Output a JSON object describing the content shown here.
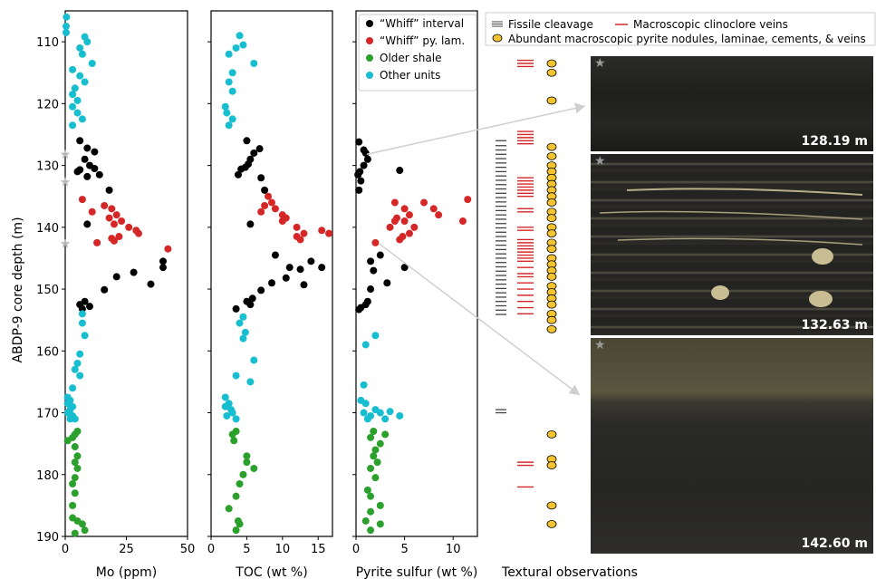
{
  "ylabel": "ABDP-9 core depth (m)",
  "yticks": [
    110,
    120,
    130,
    140,
    150,
    160,
    170,
    180,
    190
  ],
  "stars_depth": [
    128.19,
    132.63,
    142.6
  ],
  "colors": {
    "whiff": "#000000",
    "whiff_py": "#d62728",
    "older": "#2ca02c",
    "other": "#17becf"
  },
  "chart_data": [
    {
      "type": "scatter",
      "xlabel": "Mo (ppm)",
      "xlim": [
        0,
        50
      ],
      "xticks": [
        0,
        25,
        50
      ],
      "series": [
        {
          "name": "“Whiff” interval",
          "points": [
            [
              6,
              126
            ],
            [
              9,
              127.2
            ],
            [
              12,
              127.8
            ],
            [
              8,
              129
            ],
            [
              10,
              130
            ],
            [
              6,
              130.7
            ],
            [
              5,
              131
            ],
            [
              12,
              130.5
            ],
            [
              14,
              131.5
            ],
            [
              9,
              131.8
            ],
            [
              18,
              134
            ],
            [
              9,
              139.5
            ],
            [
              21,
              148
            ],
            [
              28,
              147.3
            ],
            [
              35,
              149.2
            ],
            [
              16,
              150.1
            ],
            [
              8,
              152
            ],
            [
              6,
              152.5
            ],
            [
              10,
              152.8
            ],
            [
              7,
              153.2
            ],
            [
              40,
              145.5
            ],
            [
              40,
              146.5
            ]
          ]
        },
        {
          "name": "“Whiff” py. lam.",
          "points": [
            [
              7,
              135.5
            ],
            [
              16,
              136.5
            ],
            [
              19,
              137
            ],
            [
              11,
              137.5
            ],
            [
              18,
              138.5
            ],
            [
              21,
              138
            ],
            [
              23,
              139
            ],
            [
              20,
              139.5
            ],
            [
              26,
              140
            ],
            [
              29,
              140.5
            ],
            [
              30,
              141
            ],
            [
              22,
              141.5
            ],
            [
              19,
              141.8
            ],
            [
              20,
              142.2
            ],
            [
              13,
              142.5
            ],
            [
              42,
              143.5
            ]
          ]
        },
        {
          "name": "Older shale",
          "points": [
            [
              5,
              173
            ],
            [
              4,
              173.5
            ],
            [
              3,
              174
            ],
            [
              4,
              175.5
            ],
            [
              5,
              177
            ],
            [
              4,
              178
            ],
            [
              5,
              179
            ],
            [
              4,
              180.5
            ],
            [
              3,
              181.5
            ],
            [
              4,
              183
            ],
            [
              3,
              185
            ],
            [
              3,
              187
            ],
            [
              5,
              187.5
            ],
            [
              7,
              188
            ],
            [
              8,
              189
            ],
            [
              4,
              189.5
            ],
            [
              1,
              174.5
            ]
          ]
        },
        {
          "name": "Other units",
          "points": [
            [
              0.5,
              106
            ],
            [
              0.3,
              107.5
            ],
            [
              0.3,
              108.5
            ],
            [
              8,
              109.2
            ],
            [
              9,
              110
            ],
            [
              6,
              111
            ],
            [
              7,
              112
            ],
            [
              11,
              113.5
            ],
            [
              3,
              114.5
            ],
            [
              6,
              115.5
            ],
            [
              8,
              116.5
            ],
            [
              4,
              117.5
            ],
            [
              3,
              118.5
            ],
            [
              5,
              119.5
            ],
            [
              3,
              120.5
            ],
            [
              5,
              121.5
            ],
            [
              7,
              122.5
            ],
            [
              3,
              123.5
            ],
            [
              7,
              154
            ],
            [
              7,
              155.5
            ],
            [
              8,
              157.5
            ],
            [
              6,
              160.5
            ],
            [
              5,
              162
            ],
            [
              4,
              163
            ],
            [
              6,
              164
            ],
            [
              3,
              166
            ],
            [
              1,
              167.5
            ],
            [
              2,
              168
            ],
            [
              1,
              168.5
            ],
            [
              3,
              169
            ],
            [
              2,
              169.5
            ],
            [
              1,
              170
            ],
            [
              3,
              170.5
            ],
            [
              2,
              171
            ],
            [
              4,
              171
            ]
          ]
        }
      ]
    },
    {
      "type": "scatter",
      "xlabel": "TOC (wt %)",
      "xlim": [
        0,
        17
      ],
      "xticks": [
        0,
        5,
        10,
        15
      ],
      "series": [
        {
          "name": "“Whiff” interval",
          "points": [
            [
              6.8,
              127.3
            ],
            [
              6,
              128
            ],
            [
              5,
              126
            ],
            [
              5.5,
              129
            ],
            [
              5.2,
              129.8
            ],
            [
              4.8,
              130.3
            ],
            [
              4.2,
              130.6
            ],
            [
              3.8,
              131.5
            ],
            [
              7,
              132
            ],
            [
              7.5,
              134
            ],
            [
              5.5,
              139.5
            ],
            [
              9,
              144.5
            ],
            [
              11,
              146.5
            ],
            [
              12.5,
              146.8
            ],
            [
              14,
              145.5
            ],
            [
              15.5,
              146.5
            ],
            [
              10.5,
              148.2
            ],
            [
              8.5,
              149
            ],
            [
              13,
              149.3
            ],
            [
              7,
              150.2
            ],
            [
              5.8,
              151.5
            ],
            [
              5,
              152
            ],
            [
              5.5,
              152.5
            ],
            [
              3.5,
              153.2
            ]
          ]
        },
        {
          "name": "“Whiff” py. lam.",
          "points": [
            [
              8,
              135
            ],
            [
              8.5,
              136
            ],
            [
              7.5,
              136.5
            ],
            [
              9,
              137
            ],
            [
              7,
              137.5
            ],
            [
              10,
              138
            ],
            [
              10.5,
              138.5
            ],
            [
              10,
              139
            ],
            [
              12,
              140
            ],
            [
              13,
              141
            ],
            [
              12,
              141.5
            ],
            [
              12.5,
              142
            ],
            [
              15.5,
              140.5
            ],
            [
              16.5,
              141
            ]
          ]
        },
        {
          "name": "Older shale",
          "points": [
            [
              3.5,
              173
            ],
            [
              3,
              173.5
            ],
            [
              3.2,
              174.5
            ],
            [
              5,
              177
            ],
            [
              5,
              178
            ],
            [
              6,
              179
            ],
            [
              4.5,
              180
            ],
            [
              4,
              181.5
            ],
            [
              3.5,
              183.5
            ],
            [
              2.5,
              185.5
            ],
            [
              3.8,
              187.5
            ],
            [
              4,
              188
            ],
            [
              3.5,
              189
            ]
          ]
        },
        {
          "name": "Other units",
          "points": [
            [
              4,
              109
            ],
            [
              4.5,
              110.5
            ],
            [
              3.5,
              111
            ],
            [
              2.5,
              112
            ],
            [
              6,
              113.5
            ],
            [
              3,
              115
            ],
            [
              2.5,
              116.5
            ],
            [
              3,
              118
            ],
            [
              2,
              120.5
            ],
            [
              2.2,
              121.5
            ],
            [
              3,
              122.5
            ],
            [
              2.5,
              123.5
            ],
            [
              4.5,
              154.5
            ],
            [
              4,
              155.5
            ],
            [
              4.8,
              157
            ],
            [
              4.5,
              158
            ],
            [
              6,
              161.5
            ],
            [
              3.5,
              164
            ],
            [
              5.5,
              165
            ],
            [
              2,
              167.5
            ],
            [
              2.5,
              168.5
            ],
            [
              2,
              169
            ],
            [
              2.8,
              169.5
            ],
            [
              3,
              170
            ],
            [
              2.2,
              170.5
            ],
            [
              3.5,
              171
            ]
          ]
        }
      ]
    },
    {
      "type": "scatter",
      "xlabel": "Pyrite sulfur (wt %)",
      "xlim": [
        0,
        12.5
      ],
      "xticks": [
        0,
        5,
        10
      ],
      "series": [
        {
          "name": "“Whiff” interval",
          "points": [
            [
              0.3,
              126.2
            ],
            [
              0.8,
              127.5
            ],
            [
              1,
              128
            ],
            [
              1.2,
              129
            ],
            [
              0.8,
              130
            ],
            [
              0.4,
              131
            ],
            [
              0.2,
              131.5
            ],
            [
              0.5,
              132.5
            ],
            [
              0.3,
              134
            ],
            [
              1.5,
              145.5
            ],
            [
              1.8,
              147
            ],
            [
              2.5,
              144.5
            ],
            [
              3.2,
              149
            ],
            [
              5,
              146.5
            ],
            [
              1.5,
              150
            ],
            [
              1.2,
              152
            ],
            [
              1,
              152.5
            ],
            [
              0.5,
              153
            ],
            [
              0.3,
              153.3
            ],
            [
              4.5,
              130.8
            ]
          ]
        },
        {
          "name": "“Whiff” py. lam.",
          "points": [
            [
              4,
              136
            ],
            [
              5,
              137
            ],
            [
              5.5,
              138
            ],
            [
              5,
              139
            ],
            [
              6,
              140
            ],
            [
              5.5,
              141
            ],
            [
              4.8,
              141.5
            ],
            [
              4.5,
              142
            ],
            [
              2,
              142.5
            ],
            [
              3.5,
              140
            ],
            [
              4,
              139
            ],
            [
              7,
              136
            ],
            [
              8,
              137
            ],
            [
              8.5,
              138
            ],
            [
              11,
              139
            ],
            [
              11.5,
              135.5
            ],
            [
              4.2,
              138.5
            ]
          ]
        },
        {
          "name": "Older shale",
          "points": [
            [
              1.8,
              173
            ],
            [
              1.5,
              174
            ],
            [
              3,
              173.5
            ],
            [
              2.5,
              175
            ],
            [
              2,
              176
            ],
            [
              1.8,
              177
            ],
            [
              2.2,
              178
            ],
            [
              1.5,
              179
            ],
            [
              2,
              180.5
            ],
            [
              1.2,
              182.5
            ],
            [
              1.5,
              183.5
            ],
            [
              2.5,
              185
            ],
            [
              1.5,
              186
            ],
            [
              1,
              187.5
            ],
            [
              2.5,
              188
            ],
            [
              1.5,
              189
            ]
          ]
        },
        {
          "name": "Other units",
          "points": [
            [
              1,
              159
            ],
            [
              2,
              157.5
            ],
            [
              0.8,
              165.5
            ],
            [
              0.5,
              168
            ],
            [
              1,
              168.5
            ],
            [
              2,
              169.5
            ],
            [
              0.8,
              170
            ],
            [
              1.5,
              170.5
            ],
            [
              2.5,
              170
            ],
            [
              3,
              171
            ],
            [
              4.5,
              170.5
            ],
            [
              3.5,
              169.8
            ],
            [
              1.2,
              171
            ]
          ]
        }
      ]
    }
  ],
  "legend": {
    "items": [
      {
        "label": "“Whiff” interval",
        "key": "whiff"
      },
      {
        "label": "“Whiff” py. lam.",
        "key": "whiff_py"
      },
      {
        "label": "Older shale",
        "key": "older"
      },
      {
        "label": "Other units",
        "key": "other"
      }
    ]
  },
  "textural": {
    "legend_fissile": "Fissile cleavage",
    "legend_veins": "Macroscopic clinoclore veins",
    "legend_pyrite": "Abundant macroscopic pyrite nodules, laminae, cements, & veins",
    "xlabel": "Textural observations",
    "fissile_depths": [
      126,
      126.8,
      127.5,
      128.2,
      128.9,
      129.6,
      130.3,
      131,
      131.7,
      132.4,
      133.1,
      133.8,
      134.5,
      135.2,
      135.9,
      136.6,
      137.3,
      138,
      138.7,
      139.4,
      140.1,
      140.8,
      141.5,
      142.2,
      142.9,
      143.6,
      144.3,
      145,
      145.7,
      146.4,
      147.1,
      147.8,
      148.5,
      149.2,
      149.9,
      150.6,
      151.3,
      152,
      152.7,
      153.4,
      154.1,
      169.5,
      170
    ],
    "vein_depths": [
      113,
      113.5,
      114,
      124.5,
      125,
      125.5,
      126,
      126.5,
      132,
      132.5,
      133,
      133.5,
      134,
      134.5,
      135,
      137,
      137.5,
      140,
      140.5,
      142,
      142.5,
      143,
      143.5,
      144,
      144.5,
      145,
      145.5,
      146.5,
      147.5,
      148,
      149,
      150,
      151,
      152,
      153,
      154,
      178,
      178.5,
      182
    ],
    "pyrite_depths": [
      113.5,
      115,
      119.5,
      127,
      128.5,
      130,
      131,
      132,
      133,
      134,
      135,
      136,
      137.5,
      138.5,
      140,
      141,
      142.5,
      143.5,
      145,
      146,
      147,
      148,
      149.5,
      150.5,
      151.5,
      152.5,
      154,
      155,
      156.5,
      173.5,
      177.5,
      178.5,
      185,
      188
    ]
  },
  "photos": [
    {
      "label": "128.19 m",
      "depth": 128.19
    },
    {
      "label": "132.63 m",
      "depth": 132.63
    },
    {
      "label": "142.60 m",
      "depth": 142.6
    }
  ],
  "star_symbol": "★"
}
